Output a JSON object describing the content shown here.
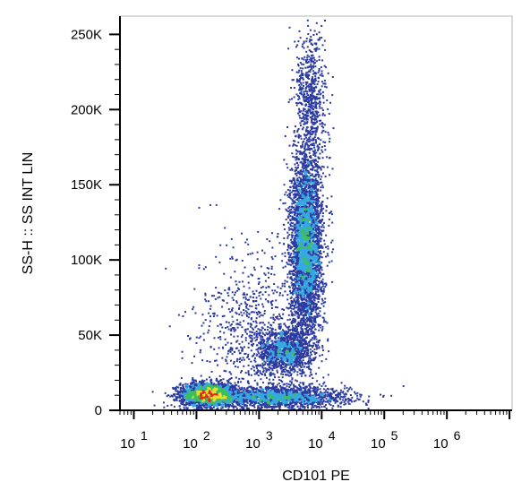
{
  "chart_data": {
    "type": "scatter",
    "subtype": "flow-cytometry-density-dot-plot",
    "xlabel": "CD101 PE",
    "ylabel": "SS-H :: SS INT LIN",
    "x_scale": "log",
    "y_scale": "linear",
    "xlim": [
      6,
      11000000
    ],
    "ylim": [
      0,
      262144
    ],
    "x_ticks": [
      {
        "value": 10,
        "base": "10",
        "exp": "1"
      },
      {
        "value": 100,
        "base": "10",
        "exp": "2"
      },
      {
        "value": 1000,
        "base": "10",
        "exp": "3"
      },
      {
        "value": 10000,
        "base": "10",
        "exp": "4"
      },
      {
        "value": 100000,
        "base": "10",
        "exp": "5"
      },
      {
        "value": 1000000,
        "base": "10",
        "exp": "6"
      }
    ],
    "y_ticks": [
      {
        "value": 0,
        "label": "0"
      },
      {
        "value": 50000,
        "label": "50K"
      },
      {
        "value": 100000,
        "label": "100K"
      },
      {
        "value": 150000,
        "label": "150K"
      },
      {
        "value": 200000,
        "label": "200K"
      },
      {
        "value": 250000,
        "label": "250K"
      }
    ],
    "populations": [
      {
        "x": 150,
        "y": 11000,
        "sx_log": 0.22,
        "sy": 4000,
        "n": 2200
      },
      {
        "x": 2000,
        "y": 9000,
        "sx_log": 0.55,
        "sy": 3500,
        "n": 1800
      },
      {
        "x": 2500,
        "y": 40000,
        "sx_log": 0.22,
        "sy": 8000,
        "n": 1200
      },
      {
        "x": 5500,
        "y": 110000,
        "sx_log": 0.13,
        "sy": 30000,
        "n": 3800
      },
      {
        "x": 6500,
        "y": 205000,
        "sx_log": 0.12,
        "sy": 25000,
        "n": 700
      },
      {
        "x": 800,
        "y": 55000,
        "sx_log": 0.45,
        "sy": 28000,
        "n": 700
      }
    ],
    "colors": {
      "low": "#2b3aa0",
      "mid_low": "#35a9e0",
      "mid": "#3fbf5a",
      "mid_high": "#e5e030",
      "high": "#e52820"
    },
    "grid": false
  }
}
